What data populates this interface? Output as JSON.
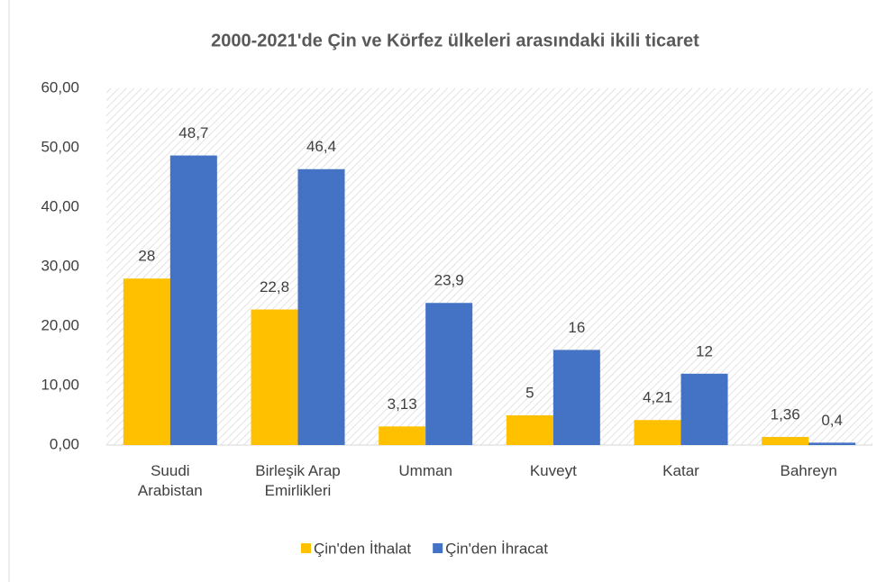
{
  "chart_data": {
    "type": "bar",
    "title": "2000-2021'de Çin ve Körfez ülkeleri arasındaki ikili ticaret",
    "categories": [
      "Suudi Arabistan",
      "Birleşik Arap Emirlikleri",
      "Umman",
      "Kuveyt",
      "Katar",
      "Bahreyn"
    ],
    "series": [
      {
        "name": "Çin'den İthalat",
        "color": "#FFC000",
        "values": [
          28,
          22.8,
          3.13,
          5,
          4.21,
          1.36
        ],
        "value_labels": [
          "28",
          "22,8",
          "3,13",
          "5",
          "4,21",
          "1,36"
        ]
      },
      {
        "name": "Çin'den İhracat",
        "color": "#4472C4",
        "values": [
          48.7,
          46.4,
          23.9,
          16,
          12,
          0.4
        ],
        "value_labels": [
          "48,7",
          "46,4",
          "23,9",
          "16",
          "12",
          "0,4"
        ]
      }
    ],
    "ylim": [
      0,
      60
    ],
    "yticks": [
      {
        "value": 0,
        "label": "0,00"
      },
      {
        "value": 10,
        "label": "10,00"
      },
      {
        "value": 20,
        "label": "20,00"
      },
      {
        "value": 30,
        "label": "30,00"
      },
      {
        "value": 40,
        "label": "40,00"
      },
      {
        "value": 50,
        "label": "50,00"
      },
      {
        "value": 60,
        "label": "60,00"
      }
    ],
    "legend": "bottom"
  }
}
